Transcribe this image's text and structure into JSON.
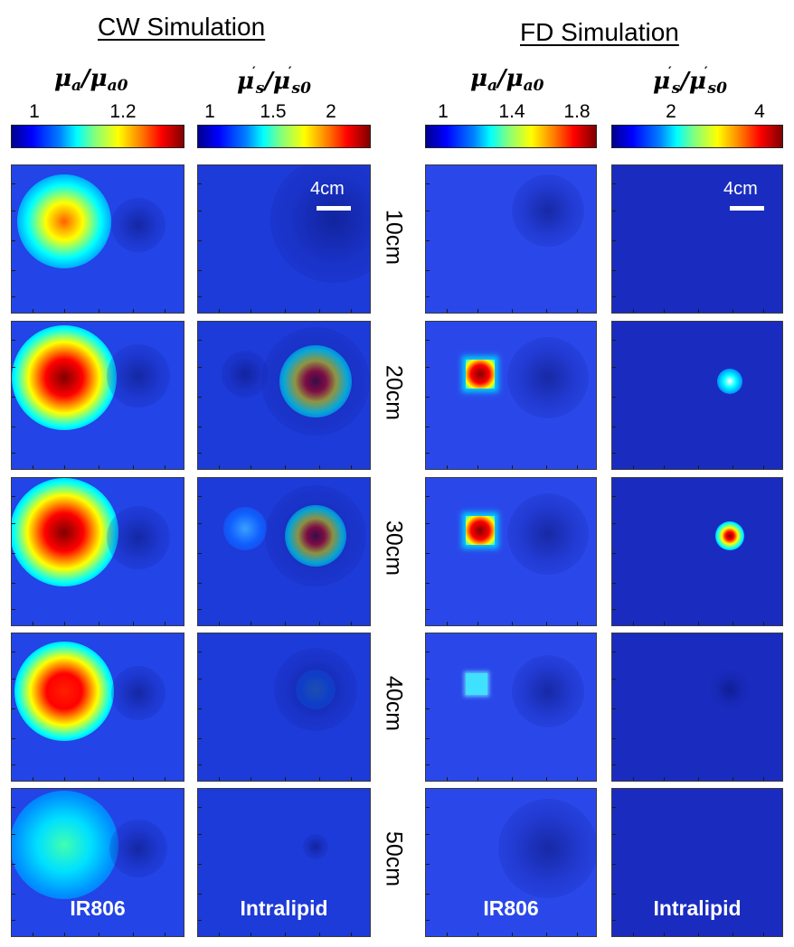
{
  "groups": {
    "cw": {
      "title": "CW Simulation"
    },
    "fd": {
      "title": "FD Simulation"
    }
  },
  "quantities": {
    "absorption": {
      "symbol": "μ",
      "sub": "a",
      "over": "μ",
      "over_sub": "a0"
    },
    "scattering": {
      "symbol": "μ",
      "sub": "s",
      "over": "μ",
      "over_sub": "s0",
      "prime": "′"
    }
  },
  "colorbars": {
    "cw_abs": {
      "ticks": [
        "1",
        "1.2"
      ]
    },
    "cw_sca": {
      "ticks": [
        "1",
        "1.5",
        "2"
      ]
    },
    "fd_abs": {
      "ticks": [
        "1",
        "1.4",
        "1.8"
      ]
    },
    "fd_sca": {
      "ticks": [
        "2",
        "4"
      ]
    }
  },
  "scale_bar": {
    "label": "4cm"
  },
  "rows": [
    "10cm",
    "20cm",
    "30cm",
    "40cm",
    "50cm"
  ],
  "column_labels": {
    "ir": "IR806",
    "intralipid": "Intralipid"
  },
  "colors": {
    "background_blue": "#1f3de0",
    "dark_blue": "#1a2fc8",
    "deep_blue": "#1424b0"
  }
}
